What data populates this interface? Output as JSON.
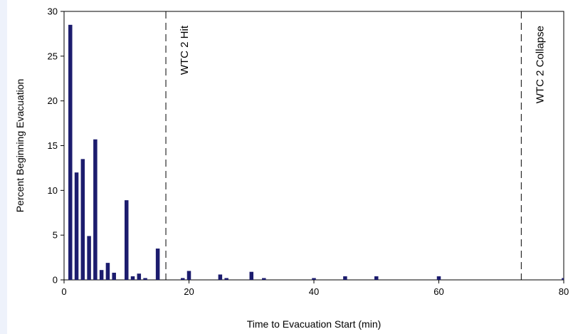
{
  "chart_data": {
    "type": "bar",
    "title": "",
    "xlabel": "Time to Evacuation Start (min)",
    "ylabel": "Percent Beginning Evacuation",
    "xlim": [
      0,
      80
    ],
    "ylim": [
      0,
      30
    ],
    "xticks": [
      0,
      20,
      40,
      60,
      80
    ],
    "yticks": [
      0,
      5,
      10,
      15,
      20,
      25,
      30
    ],
    "grid": false,
    "legend": "none",
    "bar_color": "#1c1c6e",
    "x": [
      1,
      2,
      3,
      4,
      5,
      6,
      7,
      8,
      10,
      11,
      12,
      13,
      15,
      19,
      20,
      25,
      26,
      30,
      32,
      40,
      45,
      50,
      60,
      80
    ],
    "values": [
      28.5,
      12.0,
      13.5,
      4.9,
      15.7,
      1.1,
      1.9,
      0.8,
      8.9,
      0.4,
      0.7,
      0.2,
      3.5,
      0.2,
      1.0,
      0.6,
      0.2,
      0.9,
      0.2,
      0.2,
      0.4,
      0.4,
      0.4,
      0.2
    ],
    "annotations": [
      {
        "x": 16.3,
        "label": "WTC 2 Hit",
        "style": "dashed-vertical-line"
      },
      {
        "x": 73.2,
        "label": "WTC 2 Collapse",
        "style": "dashed-vertical-line"
      }
    ]
  }
}
